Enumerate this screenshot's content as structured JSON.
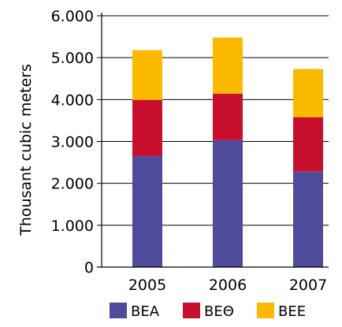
{
  "chart_data": {
    "type": "bar",
    "stacked": true,
    "categories": [
      "2005",
      "2006",
      "2007"
    ],
    "series": [
      {
        "name": "ΒΕΑ",
        "values": [
          2650,
          3030,
          2280
        ],
        "color": "#4f4a9a"
      },
      {
        "name": "ΒΕΘ",
        "values": [
          1340,
          1110,
          1300
        ],
        "color": "#c8102e"
      },
      {
        "name": "ΒΕΕ",
        "values": [
          1190,
          1340,
          1150
        ],
        "color": "#fbba00"
      }
    ],
    "title": "",
    "xlabel": "",
    "ylabel": "Thousant cubic meters",
    "ylim": [
      0,
      6000
    ],
    "yticks": [
      {
        "value": 0,
        "label": "0"
      },
      {
        "value": 1000,
        "label": "1.000"
      },
      {
        "value": 2000,
        "label": "2.000"
      },
      {
        "value": 3000,
        "label": "3.000"
      },
      {
        "value": 4000,
        "label": "4.000"
      },
      {
        "value": 5000,
        "label": "5.000"
      },
      {
        "value": 6000,
        "label": "6.000"
      }
    ],
    "grid": true,
    "legend_position": "bottom"
  }
}
